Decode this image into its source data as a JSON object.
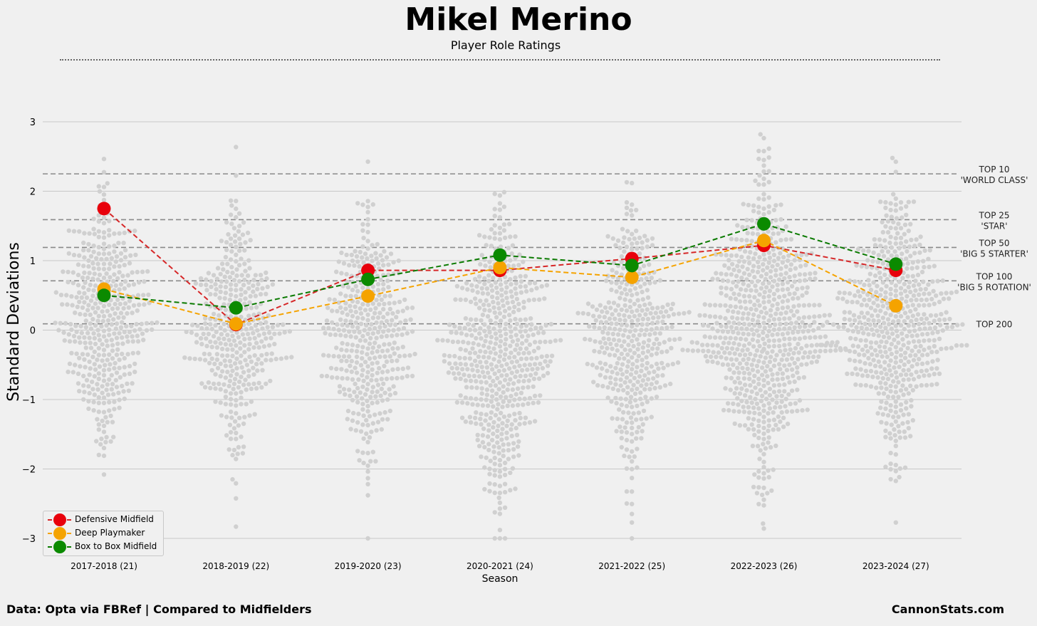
{
  "header": {
    "title": "Mikel Merino",
    "subtitle": "Player Role Ratings"
  },
  "footer": {
    "source": "Data: Opta via FBRef | Compared to Midfielders",
    "brand": "CannonStats.com"
  },
  "chart_data": {
    "type": "scatter",
    "xlabel": "Season",
    "ylabel": "Standard Deviations",
    "ylim": [
      -3.1,
      3.4
    ],
    "yticks": [
      -3,
      -2,
      -1,
      0,
      1,
      2,
      3
    ],
    "grid": true,
    "legend_position": "bottom-left",
    "categories": [
      "2017-2018 (21)",
      "2018-2019 (22)",
      "2019-2020 (23)",
      "2020-2021 (24)",
      "2021-2022 (25)",
      "2022-2023 (26)",
      "2023-2024 (27)"
    ],
    "series": [
      {
        "name": "Defensive Midfield",
        "color": "#e8000b",
        "line_color": "#d62728",
        "values": [
          1.75,
          0.08,
          0.86,
          0.86,
          1.03,
          1.22,
          0.86
        ]
      },
      {
        "name": "Deep Playmaker",
        "color": "#f5a300",
        "line_color": "#f5a300",
        "values": [
          0.59,
          0.09,
          0.49,
          0.9,
          0.76,
          1.29,
          0.35
        ]
      },
      {
        "name": "Box to Box Midfield",
        "color": "#0b8a00",
        "line_color": "#0a7a00",
        "values": [
          0.5,
          0.32,
          0.73,
          1.08,
          0.93,
          1.53,
          0.95
        ]
      }
    ],
    "thresholds": [
      {
        "value": 2.25,
        "line1": "TOP 10",
        "line2": "'WORLD CLASS'"
      },
      {
        "value": 1.59,
        "line1": "TOP 25",
        "line2": "'STAR'"
      },
      {
        "value": 1.19,
        "line1": "TOP 50",
        "line2": "'BIG 5 STARTER'"
      },
      {
        "value": 0.71,
        "line1": "TOP 100",
        "line2": "'BIG 5 ROTATION'"
      },
      {
        "value": 0.09,
        "line1": "TOP 200",
        "line2": ""
      }
    ],
    "distribution_color": "#d0d0d0",
    "distributions": [
      {
        "season": "2017-2018 (21)",
        "n": 420,
        "mean": 0.15,
        "sd": 0.85
      },
      {
        "season": "2018-2019 (22)",
        "n": 380,
        "mean": -0.05,
        "sd": 0.82
      },
      {
        "season": "2019-2020 (23)",
        "n": 400,
        "mean": -0.1,
        "sd": 0.8
      },
      {
        "season": "2020-2021 (24)",
        "n": 560,
        "mean": -0.4,
        "sd": 1.0
      },
      {
        "season": "2021-2022 (25)",
        "n": 420,
        "mean": -0.1,
        "sd": 0.85
      },
      {
        "season": "2022-2023 (26)",
        "n": 700,
        "mean": 0.0,
        "sd": 0.95
      },
      {
        "season": "2023-2024 (27)",
        "n": 560,
        "mean": 0.05,
        "sd": 0.85
      }
    ]
  }
}
